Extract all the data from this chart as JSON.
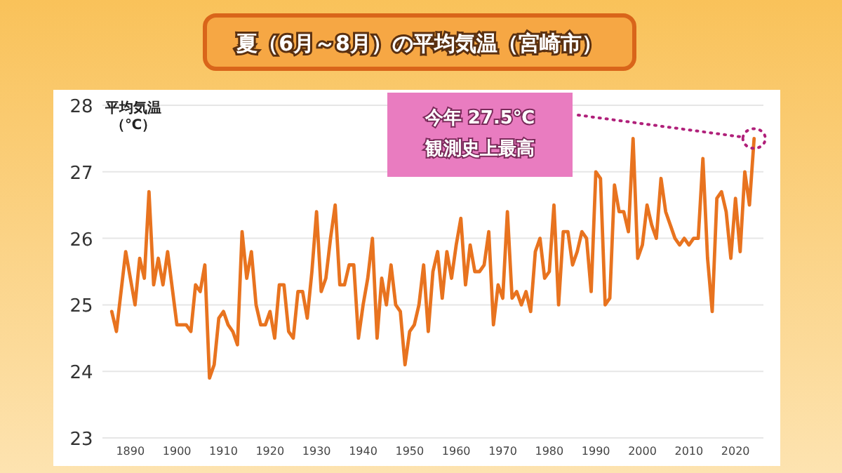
{
  "chart_data": {
    "type": "line",
    "title": "夏（6月～8月）の平均気温（宮崎市）",
    "ylabel": "平均気温（℃）",
    "annotations": [
      "今年 27.5℃\n観測史上最高"
    ],
    "series": [
      {
        "color": "#e8731f",
        "x": [
          1886,
          1887,
          1889,
          1891,
          1892,
          1893,
          1894,
          1895,
          1896,
          1897,
          1898,
          1900,
          1902,
          1903,
          1904,
          1905,
          1906,
          1907,
          1908,
          1909,
          1910,
          1911,
          1912,
          1913,
          1914,
          1915,
          1916,
          1917,
          1918,
          1919,
          1920,
          1921,
          1922,
          1923,
          1924,
          1925,
          1926,
          1927,
          1928,
          1929,
          1930,
          1931,
          1932,
          1933,
          1934,
          1935,
          1936,
          1937,
          1938,
          1939,
          1940,
          1941,
          1942,
          1943,
          1944,
          1945,
          1946,
          1947,
          1948,
          1949,
          1950,
          1951,
          1952,
          1953,
          1954,
          1955,
          1956,
          1957,
          1958,
          1959,
          1960,
          1961,
          1962,
          1963,
          1964,
          1965,
          1966,
          1967,
          1968,
          1969,
          1970,
          1971,
          1972,
          1973,
          1974,
          1975,
          1976,
          1977,
          1978,
          1979,
          1980,
          1981,
          1982,
          1983,
          1984,
          1985,
          1986,
          1987,
          1988,
          1989,
          1990,
          1991,
          1992,
          1993,
          1994,
          1995,
          1996,
          1997,
          1998,
          1999,
          2000,
          2001,
          2002,
          2003,
          2004,
          2005,
          2006,
          2007,
          2008,
          2009,
          2010,
          2011,
          2012,
          2013,
          2014,
          2015,
          2016,
          2017,
          2018,
          2019,
          2020,
          2021,
          2022,
          2023,
          2024
        ],
        "values": [
          24.9,
          24.6,
          25.8,
          25.0,
          25.7,
          25.4,
          26.7,
          25.3,
          25.7,
          25.3,
          25.8,
          24.7,
          24.7,
          24.6,
          25.3,
          25.2,
          25.6,
          23.9,
          24.1,
          24.8,
          24.9,
          24.7,
          24.6,
          24.4,
          26.1,
          25.4,
          25.8,
          25.0,
          24.7,
          24.7,
          24.9,
          24.5,
          25.3,
          25.3,
          24.6,
          24.5,
          25.2,
          25.2,
          24.8,
          25.5,
          26.4,
          25.2,
          25.4,
          26.0,
          26.5,
          25.3,
          25.3,
          25.6,
          25.6,
          24.5,
          25.0,
          25.4,
          26.0,
          24.5,
          25.4,
          25.0,
          25.6,
          25.0,
          24.9,
          24.1,
          24.6,
          24.7,
          25.0,
          25.6,
          24.6,
          25.5,
          25.8,
          25.1,
          25.8,
          25.4,
          25.9,
          26.3,
          25.3,
          25.9,
          25.5,
          25.5,
          25.6,
          26.1,
          24.7,
          25.3,
          25.1,
          26.4,
          25.1,
          25.2,
          25.0,
          25.2,
          24.9,
          25.8,
          26.0,
          25.4,
          25.5,
          26.5,
          25.0,
          26.1,
          26.1,
          25.6,
          25.8,
          26.1,
          26.0,
          25.2,
          27.0,
          26.9,
          25.0,
          25.1,
          26.8,
          26.4,
          26.4,
          26.1,
          27.5,
          25.7,
          25.9,
          26.5,
          26.2,
          26.0,
          26.9,
          26.4,
          26.2,
          26.0,
          25.9,
          26.0,
          25.9,
          26.0,
          26.0,
          27.2,
          25.7,
          24.9,
          26.6,
          26.7,
          26.4,
          25.7,
          26.6,
          25.8,
          27.0,
          26.5,
          27.5
        ]
      }
    ],
    "xlim": [
      1884,
      2026
    ],
    "xticks": [
      1890,
      1900,
      1910,
      1920,
      1930,
      1940,
      1950,
      1960,
      1970,
      1980,
      1990,
      2000,
      2010,
      2020
    ],
    "ylim": [
      23,
      28
    ],
    "yticks": [
      23,
      24,
      25,
      26,
      27,
      28
    ],
    "grid": "y",
    "marker": "none",
    "line_style": "solid"
  }
}
